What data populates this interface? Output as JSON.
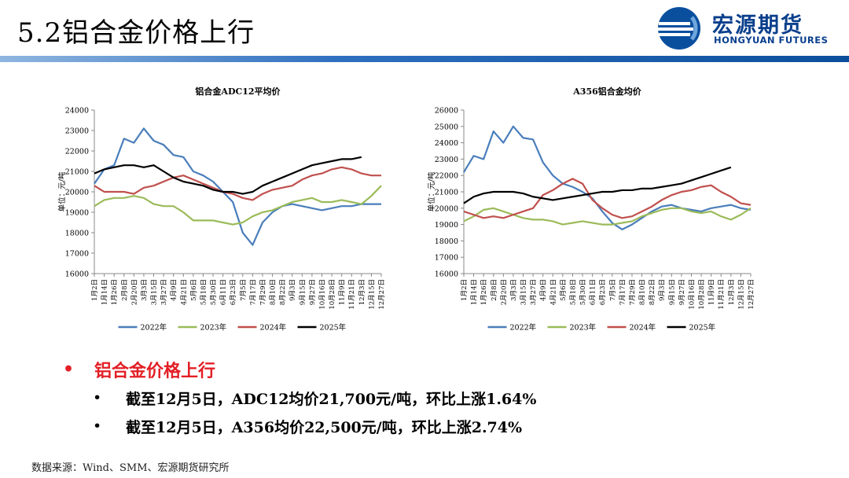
{
  "slide": {
    "title": "5.2铝合金价格上行",
    "logo_cn": "宏源期货",
    "logo_en": "HONGYUAN FUTURES",
    "source": "数据来源：Wind、SMM、宏源期货研究所"
  },
  "bullets": {
    "main": "铝合金价格上行",
    "sub": [
      "截至12月5日，ADC12均价21,700元/吨，环比上涨1.64%",
      "截至12月5日，A356均价22,500元/吨，环比上涨2.74%"
    ],
    "bullet_char": "•"
  },
  "colors": {
    "2022年": "#4a7ebb",
    "2023年": "#9bbb59",
    "2024年": "#c0504d",
    "2025年": "#000000",
    "accent": "#e21f26"
  },
  "chart_data": [
    {
      "type": "line",
      "title": "铝合金ADC12平均价",
      "ylabel": "单位：元/吨",
      "xlabel": "",
      "ylim": [
        16000,
        24000
      ],
      "yticks": [
        16000,
        17000,
        18000,
        19000,
        20000,
        21000,
        22000,
        23000,
        24000
      ],
      "x_tick_labels": [
        "1月2日",
        "1月14日",
        "1月26日",
        "2月8日",
        "2月20日",
        "3月3日",
        "3月15日",
        "3月27日",
        "4月9日",
        "4月21日",
        "5月6日",
        "5月18日",
        "5月30日",
        "6月11日",
        "6月23日",
        "7月5日",
        "7月17日",
        "7月29日",
        "8月10日",
        "8月22日",
        "9月3日",
        "9月15日",
        "9月27日",
        "10月16日",
        "10月28日",
        "11月9日",
        "11月21日",
        "12月3日",
        "12月15日",
        "12月27日"
      ],
      "legend": [
        "2022年",
        "2023年",
        "2024年",
        "2025年"
      ],
      "legend_position": "bottom",
      "series": [
        {
          "name": "2022年",
          "values": [
            20400,
            21100,
            21300,
            22600,
            22400,
            23100,
            22500,
            22300,
            21800,
            21700,
            21000,
            20800,
            20500,
            20000,
            19500,
            18000,
            17400,
            18500,
            19000,
            19300,
            19400,
            19300,
            19200,
            19100,
            19200,
            19300,
            19300,
            19400,
            19400,
            19400
          ]
        },
        {
          "name": "2023年",
          "values": [
            19300,
            19600,
            19700,
            19700,
            19800,
            19700,
            19400,
            19300,
            19300,
            19000,
            18600,
            18600,
            18600,
            18500,
            18400,
            18500,
            18800,
            19000,
            19100,
            19300,
            19500,
            19600,
            19700,
            19500,
            19500,
            19600,
            19500,
            19400,
            19800,
            20300
          ]
        },
        {
          "name": "2024年",
          "values": [
            20300,
            20000,
            20000,
            20000,
            19900,
            20200,
            20300,
            20500,
            20700,
            20800,
            20600,
            20400,
            20200,
            20000,
            19900,
            19700,
            19600,
            19900,
            20100,
            20200,
            20300,
            20600,
            20800,
            20900,
            21100,
            21200,
            21100,
            20900,
            20800,
            20800
          ]
        },
        {
          "name": "2025年",
          "values": [
            20900,
            21100,
            21200,
            21300,
            21300,
            21200,
            21300,
            21000,
            20700,
            20500,
            20400,
            20300,
            20100,
            20000,
            20000,
            19900,
            20000,
            20300,
            20500,
            20700,
            20900,
            21100,
            21300,
            21400,
            21500,
            21600,
            21600,
            21700
          ]
        }
      ]
    },
    {
      "type": "line",
      "title": "A356铝合金均价",
      "ylabel": "单位：元/吨",
      "xlabel": "",
      "ylim": [
        16000,
        26000
      ],
      "yticks": [
        16000,
        17000,
        18000,
        19000,
        20000,
        21000,
        22000,
        23000,
        24000,
        25000,
        26000
      ],
      "x_tick_labels": [
        "1月2日",
        "1月14日",
        "1月26日",
        "2月8日",
        "2月20日",
        "3月3日",
        "3月15日",
        "3月27日",
        "4月9日",
        "4月21日",
        "5月6日",
        "5月18日",
        "5月30日",
        "6月11日",
        "6月23日",
        "7月5日",
        "7月17日",
        "7月29日",
        "8月10日",
        "8月22日",
        "9月3日",
        "9月15日",
        "9月27日",
        "10月16日",
        "10月28日",
        "11月9日",
        "11月21日",
        "12月3日",
        "12月15日",
        "12月27日"
      ],
      "legend": [
        "2022年",
        "2023年",
        "2024年",
        "2025年"
      ],
      "legend_position": "bottom",
      "series": [
        {
          "name": "2022年",
          "values": [
            22200,
            23200,
            23000,
            24700,
            24000,
            25000,
            24300,
            24200,
            22800,
            22000,
            21500,
            21300,
            21000,
            20600,
            19800,
            19100,
            18700,
            19000,
            19400,
            19800,
            20100,
            20200,
            20000,
            19900,
            19800,
            20000,
            20100,
            20200,
            20000,
            19900
          ]
        },
        {
          "name": "2023年",
          "values": [
            19200,
            19500,
            19900,
            20000,
            19800,
            19600,
            19400,
            19300,
            19300,
            19200,
            19000,
            19100,
            19200,
            19100,
            19000,
            19000,
            19100,
            19200,
            19500,
            19700,
            19900,
            20000,
            20000,
            19800,
            19700,
            19800,
            19500,
            19300,
            19600,
            20000
          ]
        },
        {
          "name": "2024年",
          "values": [
            19800,
            19600,
            19400,
            19500,
            19400,
            19600,
            19800,
            20000,
            20800,
            21100,
            21500,
            21800,
            21500,
            20500,
            20000,
            19600,
            19400,
            19500,
            19800,
            20100,
            20500,
            20800,
            21000,
            21100,
            21300,
            21400,
            21000,
            20700,
            20300,
            20200
          ]
        },
        {
          "name": "2025年",
          "values": [
            20300,
            20700,
            20900,
            21000,
            21000,
            21000,
            20900,
            20700,
            20600,
            20500,
            20600,
            20700,
            20800,
            20900,
            21000,
            21000,
            21100,
            21100,
            21200,
            21200,
            21300,
            21400,
            21500,
            21700,
            21900,
            22100,
            22300,
            22500
          ]
        }
      ]
    }
  ]
}
